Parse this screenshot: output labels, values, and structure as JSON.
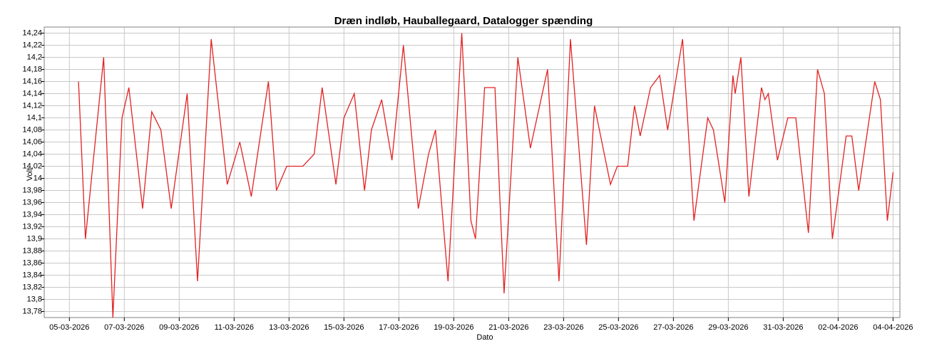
{
  "chart_data": {
    "type": "line",
    "title": "Dræn indløb, Hauballegaard, Datalogger spænding",
    "x_label": "Dato",
    "y_label": "Volt",
    "color": "#e32222",
    "grid": true,
    "x": [
      "2026-03-05T08:00",
      "2026-03-05T14:00",
      "2026-03-06T06:00",
      "2026-03-06T14:00",
      "2026-03-06T22:00",
      "2026-03-07T04:00",
      "2026-03-07T16:00",
      "2026-03-08T00:00",
      "2026-03-08T08:00",
      "2026-03-08T17:00",
      "2026-03-09T07:00",
      "2026-03-09T16:00",
      "2026-03-10T04:00",
      "2026-03-10T18:00",
      "2026-03-11T05:00",
      "2026-03-11T15:00",
      "2026-03-12T06:00",
      "2026-03-12T13:00",
      "2026-03-12T22:00",
      "2026-03-13T12:00",
      "2026-03-13T22:00",
      "2026-03-14T05:00",
      "2026-03-14T17:00",
      "2026-03-15T00:00",
      "2026-03-15T09:00",
      "2026-03-15T18:00",
      "2026-03-16T00:00",
      "2026-03-16T09:00",
      "2026-03-16T18:00",
      "2026-03-17T04:00",
      "2026-03-17T17:00",
      "2026-03-18T02:00",
      "2026-03-18T08:00",
      "2026-03-18T19:00",
      "2026-03-19T07:00",
      "2026-03-19T15:00",
      "2026-03-19T19:00",
      "2026-03-20T03:00",
      "2026-03-20T12:00",
      "2026-03-20T20:00",
      "2026-03-21T08:00",
      "2026-03-21T19:00",
      "2026-03-22T10:00",
      "2026-03-22T20:00",
      "2026-03-23T06:00",
      "2026-03-23T20:00",
      "2026-03-24T03:00",
      "2026-03-24T17:00",
      "2026-03-24T23:00",
      "2026-03-25T08:00",
      "2026-03-25T14:00",
      "2026-03-25T19:00",
      "2026-03-26T04:00",
      "2026-03-26T12:00",
      "2026-03-26T19:00",
      "2026-03-27T08:00",
      "2026-03-27T18:00",
      "2026-03-28T06:00",
      "2026-03-28T11:00",
      "2026-03-28T21:00",
      "2026-03-29T04:00",
      "2026-03-29T06:00",
      "2026-03-29T11:00",
      "2026-03-29T18:00",
      "2026-03-30T05:00",
      "2026-03-30T08:00",
      "2026-03-30T11:00",
      "2026-03-30T19:00",
      "2026-03-31T04:00",
      "2026-03-31T11:00",
      "2026-03-31T22:00",
      "2026-04-01T06:00",
      "2026-04-01T12:00",
      "2026-04-01T19:00",
      "2026-04-02T07:00",
      "2026-04-02T12:00",
      "2026-04-02T18:00",
      "2026-04-03T08:00",
      "2026-04-03T13:00",
      "2026-04-03T19:00",
      "2026-04-04T00:00"
    ],
    "values": [
      14.16,
      13.9,
      14.2,
      13.77,
      14.1,
      14.15,
      13.95,
      14.11,
      14.08,
      13.95,
      14.14,
      13.83,
      14.23,
      13.99,
      14.06,
      13.97,
      14.16,
      13.98,
      14.02,
      14.02,
      14.04,
      14.15,
      13.99,
      14.1,
      14.14,
      13.98,
      14.08,
      14.13,
      14.03,
      14.22,
      13.95,
      14.04,
      14.08,
      13.83,
      14.24,
      13.93,
      13.9,
      14.15,
      14.15,
      13.81,
      14.2,
      14.05,
      14.18,
      13.83,
      14.23,
      13.89,
      14.12,
      13.99,
      14.02,
      14.02,
      14.12,
      14.07,
      14.15,
      14.17,
      14.08,
      14.23,
      13.93,
      14.1,
      14.08,
      13.96,
      14.17,
      14.14,
      14.2,
      13.97,
      14.15,
      14.13,
      14.14,
      14.03,
      14.1,
      14.1,
      13.91,
      14.18,
      14.14,
      13.9,
      14.07,
      14.07,
      13.98,
      14.16,
      14.13,
      13.93,
      14.01
    ],
    "xlim": [
      "2026-03-04T02:00",
      "2026-04-04T06:00"
    ],
    "xticks": [
      {
        "value": "2026-03-05T00:00",
        "label": "05-03-2026"
      },
      {
        "value": "2026-03-07T00:00",
        "label": "07-03-2026"
      },
      {
        "value": "2026-03-09T00:00",
        "label": "09-03-2026"
      },
      {
        "value": "2026-03-11T00:00",
        "label": "11-03-2026"
      },
      {
        "value": "2026-03-13T00:00",
        "label": "13-03-2026"
      },
      {
        "value": "2026-03-15T00:00",
        "label": "15-03-2026"
      },
      {
        "value": "2026-03-17T00:00",
        "label": "17-03-2026"
      },
      {
        "value": "2026-03-19T00:00",
        "label": "19-03-2026"
      },
      {
        "value": "2026-03-21T00:00",
        "label": "21-03-2026"
      },
      {
        "value": "2026-03-23T00:00",
        "label": "23-03-2026"
      },
      {
        "value": "2026-03-25T00:00",
        "label": "25-03-2026"
      },
      {
        "value": "2026-03-27T00:00",
        "label": "27-03-2026"
      },
      {
        "value": "2026-03-29T00:00",
        "label": "29-03-2026"
      },
      {
        "value": "2026-03-31T00:00",
        "label": "31-03-2026"
      },
      {
        "value": "2026-04-02T00:00",
        "label": "02-04-2026"
      },
      {
        "value": "2026-04-04T00:00",
        "label": "04-04-2026"
      }
    ],
    "ylim": [
      13.77,
      14.25
    ],
    "yticks": [
      {
        "value": 13.78,
        "label": "13,78"
      },
      {
        "value": 13.8,
        "label": "13,8"
      },
      {
        "value": 13.82,
        "label": "13,82"
      },
      {
        "value": 13.84,
        "label": "13,84"
      },
      {
        "value": 13.86,
        "label": "13,86"
      },
      {
        "value": 13.88,
        "label": "13,88"
      },
      {
        "value": 13.9,
        "label": "13,9"
      },
      {
        "value": 13.92,
        "label": "13,92"
      },
      {
        "value": 13.94,
        "label": "13,94"
      },
      {
        "value": 13.96,
        "label": "13,96"
      },
      {
        "value": 13.98,
        "label": "13,98"
      },
      {
        "value": 14,
        "label": "14"
      },
      {
        "value": 14.02,
        "label": "14,02"
      },
      {
        "value": 14.04,
        "label": "14,04"
      },
      {
        "value": 14.06,
        "label": "14,06"
      },
      {
        "value": 14.08,
        "label": "14,08"
      },
      {
        "value": 14.1,
        "label": "14,1"
      },
      {
        "value": 14.12,
        "label": "14,12"
      },
      {
        "value": 14.14,
        "label": "14,14"
      },
      {
        "value": 14.16,
        "label": "14,16"
      },
      {
        "value": 14.18,
        "label": "14,18"
      },
      {
        "value": 14.2,
        "label": "14,2"
      },
      {
        "value": 14.22,
        "label": "14,22"
      },
      {
        "value": 14.24,
        "label": "14,24"
      }
    ]
  }
}
